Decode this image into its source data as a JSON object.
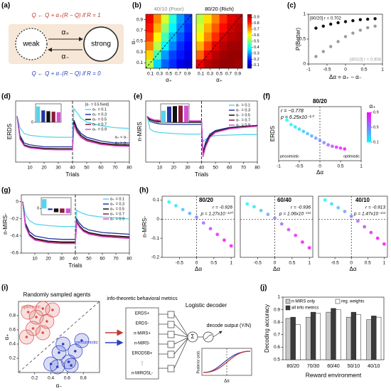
{
  "labels": [
    "(a)",
    "(b)",
    "(c)",
    "(d)",
    "(e)",
    "(f)",
    "(g)",
    "(h)",
    "(i)",
    "(j)"
  ],
  "a": {
    "eq_plus": "Q ← Q + α₊(R − Q)   if R = 1",
    "weak": "weak",
    "strong": "strong",
    "alpha_plus": "α₊",
    "alpha_minus": "α₋",
    "eq_minus": "Q ← Q + α₋(R − Q)   if R = 0"
  },
  "b": {
    "type": "heatmap",
    "xlabel": "α₊",
    "ylabel": "α₋",
    "xlim": [
      0,
      1
    ],
    "ylim": [
      0,
      1
    ],
    "xticks": [
      0.1,
      0.3,
      0.5,
      0.7,
      0.9
    ],
    "yticks": [
      0.1,
      0.3,
      0.5,
      0.7,
      0.9
    ],
    "clim": [
      0.05,
      0.95
    ],
    "cticks": [
      0.1,
      0.2,
      0.3,
      0.4,
      0.5,
      0.6,
      0.7,
      0.8,
      0.9
    ],
    "colormap": "jet",
    "maps": [
      {
        "title": "40/10 (Poor)",
        "color": "#888888",
        "z": [
          [
            0.55,
            0.35,
            0.25,
            0.2,
            0.15,
            0.12
          ],
          [
            0.65,
            0.45,
            0.3,
            0.22,
            0.18,
            0.14
          ],
          [
            0.72,
            0.55,
            0.38,
            0.28,
            0.2,
            0.16
          ],
          [
            0.78,
            0.62,
            0.45,
            0.33,
            0.24,
            0.18
          ],
          [
            0.82,
            0.68,
            0.52,
            0.38,
            0.28,
            0.2
          ],
          [
            0.85,
            0.72,
            0.58,
            0.42,
            0.3,
            0.22
          ]
        ]
      },
      {
        "title": "80/20 (Rich)",
        "color": "#000000",
        "z": [
          [
            0.85,
            0.9,
            0.92,
            0.93,
            0.93,
            0.92
          ],
          [
            0.75,
            0.85,
            0.9,
            0.92,
            0.93,
            0.93
          ],
          [
            0.68,
            0.78,
            0.86,
            0.9,
            0.92,
            0.92
          ],
          [
            0.62,
            0.72,
            0.8,
            0.87,
            0.9,
            0.91
          ],
          [
            0.58,
            0.68,
            0.76,
            0.83,
            0.88,
            0.9
          ],
          [
            0.55,
            0.64,
            0.72,
            0.8,
            0.86,
            0.88
          ]
        ]
      }
    ]
  },
  "c": {
    "type": "scatter",
    "xlabel": "Δα = α₊ − α₋",
    "ylabel": "P(Better)",
    "xlim": [
      -1,
      1
    ],
    "ylim": [
      0,
      1
    ],
    "xticks": [
      -1,
      -0.5,
      0,
      0.5,
      1
    ],
    "yticks": [
      0,
      0.5,
      1
    ],
    "series": [
      {
        "name": "[80/20] r = 0.702",
        "color": "#111111",
        "x": [
          -0.8,
          -0.6,
          -0.4,
          -0.2,
          0,
          0.2,
          0.4,
          0.6,
          0.8
        ],
        "values": [
          0.72,
          0.76,
          0.8,
          0.83,
          0.85,
          0.87,
          0.89,
          0.9,
          0.91
        ]
      },
      {
        "name": "[40/10] r = 0.904",
        "color": "#9a9a9a",
        "x": [
          -0.8,
          -0.6,
          -0.4,
          -0.2,
          0,
          0.2,
          0.4,
          0.6,
          0.8
        ],
        "values": [
          0.15,
          0.25,
          0.35,
          0.45,
          0.55,
          0.62,
          0.68,
          0.73,
          0.76
        ]
      }
    ]
  },
  "d": {
    "type": "line",
    "xlabel": "Trials",
    "ylabel": "ERDS",
    "xlim": [
      0,
      80
    ],
    "ylim": [
      0,
      0.16
    ],
    "xticks": [
      10,
      20,
      30,
      40,
      50,
      60,
      70,
      80
    ],
    "legend_title": "[α₋ = 0.5 fixed]",
    "annotations": [
      "α₊ < α₋",
      "α₊ > α₋"
    ],
    "x": [
      1,
      3,
      6,
      10,
      20,
      30,
      40,
      41,
      43,
      46,
      50,
      60,
      70,
      80
    ],
    "series": [
      {
        "name": "α₊ = 0.1",
        "color": "#56d4ec",
        "values": [
          0.12,
          0.09,
          0.075,
          0.07,
          0.066,
          0.065,
          0.065,
          0.14,
          0.13,
          0.115,
          0.105,
          0.095,
          0.09,
          0.088
        ]
      },
      {
        "name": "α₊ = 0.3",
        "color": "#2436a0",
        "values": [
          0.12,
          0.07,
          0.05,
          0.045,
          0.04,
          0.04,
          0.04,
          0.11,
          0.09,
          0.075,
          0.065,
          0.055,
          0.05,
          0.05
        ]
      },
      {
        "name": "α₊ = 0.5",
        "color": "#111111",
        "values": [
          0.12,
          0.065,
          0.045,
          0.04,
          0.036,
          0.035,
          0.035,
          0.105,
          0.085,
          0.07,
          0.06,
          0.05,
          0.046,
          0.045
        ]
      },
      {
        "name": "α₊ = 0.7",
        "color": "#8a1c3c",
        "values": [
          0.12,
          0.062,
          0.043,
          0.038,
          0.034,
          0.033,
          0.033,
          0.1,
          0.08,
          0.066,
          0.057,
          0.048,
          0.044,
          0.043
        ]
      },
      {
        "name": "α₊ = 0.9",
        "color": "#d84fd8",
        "values": [
          0.12,
          0.06,
          0.042,
          0.037,
          0.033,
          0.032,
          0.032,
          0.098,
          0.078,
          0.064,
          0.055,
          0.046,
          0.042,
          0.041
        ]
      }
    ],
    "inset": {
      "values": [
        0.6,
        0.45,
        0.42,
        0.4,
        0.38
      ],
      "ylim": [
        0,
        0.7
      ],
      "yticks": [
        0
      ]
    }
  },
  "e": {
    "type": "line",
    "xlabel": "Trials",
    "ylabel": "n-MIRS",
    "xlim": [
      0,
      80
    ],
    "ylim": [
      -0.3,
      0.9
    ],
    "xticks": [
      10,
      20,
      30,
      40,
      50,
      60,
      70,
      80
    ],
    "x": [
      1,
      3,
      6,
      10,
      20,
      30,
      40,
      41,
      43,
      46,
      50,
      60,
      70,
      80
    ],
    "series": [
      {
        "name": "α₋ = 0.1",
        "color": "#56d4ec",
        "values": [
          0.6,
          0.35,
          0.3,
          0.28,
          0.26,
          0.25,
          0.25,
          0.1,
          0.15,
          0.2,
          0.22,
          0.23,
          0.24,
          0.24
        ]
      },
      {
        "name": "α₋ = 0.3",
        "color": "#2436a0",
        "values": [
          0.6,
          0.5,
          0.47,
          0.45,
          0.44,
          0.44,
          0.44,
          -0.1,
          0.1,
          0.25,
          0.32,
          0.38,
          0.4,
          0.41
        ]
      },
      {
        "name": "α₋ = 0.5",
        "color": "#111111",
        "values": [
          0.6,
          0.53,
          0.5,
          0.49,
          0.48,
          0.48,
          0.48,
          -0.15,
          0.05,
          0.22,
          0.3,
          0.37,
          0.4,
          0.42
        ]
      },
      {
        "name": "α₋ = 0.7",
        "color": "#8a1c3c",
        "values": [
          0.6,
          0.55,
          0.52,
          0.51,
          0.5,
          0.5,
          0.5,
          -0.18,
          0.02,
          0.2,
          0.29,
          0.36,
          0.39,
          0.41
        ]
      },
      {
        "name": "α₋ = 0.9",
        "color": "#d84fd8",
        "values": [
          0.6,
          0.56,
          0.53,
          0.52,
          0.51,
          0.51,
          0.51,
          -0.2,
          0,
          0.18,
          0.28,
          0.35,
          0.38,
          0.4
        ]
      }
    ],
    "inset": {
      "values": [
        0.5,
        0.68,
        0.7,
        0.72,
        0.72
      ],
      "ylim": [
        0,
        0.8
      ],
      "yticks": [
        0
      ]
    }
  },
  "f": {
    "type": "scatter",
    "title": "80/20",
    "r": "r = −0.778",
    "p": "p = 6.25x10⁻⁶⁰",
    "xlabel": "Δα",
    "ylabel": "ERDS",
    "xlim": [
      -1,
      1
    ],
    "ylim": [
      0.02,
      0.14
    ],
    "xticks": [
      -1,
      -0.5,
      0,
      0.5,
      1
    ],
    "colorbar_label": "α₊",
    "clim": [
      0.1,
      0.9
    ],
    "cticks": [
      0.1,
      0.5,
      0.9
    ],
    "colormap": "cool",
    "pessimistic": "pessimistic",
    "optimistic": "optimistic",
    "x": [
      -0.8,
      -0.7,
      -0.6,
      -0.5,
      -0.4,
      -0.3,
      -0.2,
      -0.1,
      0,
      0.1,
      0.2,
      0.3,
      0.4,
      0.5,
      0.6
    ],
    "values": [
      0.11,
      0.1,
      0.095,
      0.09,
      0.085,
      0.08,
      0.075,
      0.07,
      0.065,
      0.06,
      0.055,
      0.052,
      0.05,
      0.048,
      0.046
    ],
    "c": [
      0.1,
      0.1,
      0.2,
      0.2,
      0.3,
      0.3,
      0.4,
      0.4,
      0.5,
      0.5,
      0.6,
      0.7,
      0.8,
      0.8,
      0.9
    ]
  },
  "g": {
    "type": "line",
    "xlabel": "Trials",
    "ylabel": "n-MIRS-",
    "xlim": [
      0,
      80
    ],
    "ylim": [
      -0.6,
      0.08
    ],
    "xticks": [
      10,
      20,
      30,
      40,
      50,
      60,
      70,
      80
    ],
    "yticks": [
      -0.6,
      -0.4,
      -0.2,
      0
    ],
    "x": [
      1,
      3,
      6,
      10,
      20,
      30,
      40,
      41,
      43,
      46,
      50,
      60,
      70,
      80
    ],
    "series": [
      {
        "name": "α₊ = 0.1",
        "color": "#56d4ec",
        "values": [
          0,
          -0.15,
          -0.22,
          -0.26,
          -0.28,
          -0.29,
          -0.29,
          -0.1,
          -0.12,
          -0.14,
          -0.16,
          -0.18,
          -0.19,
          -0.2
        ]
      },
      {
        "name": "α₊ = 0.3",
        "color": "#2436a0",
        "values": [
          0,
          -0.25,
          -0.35,
          -0.4,
          -0.43,
          -0.44,
          -0.44,
          -0.2,
          -0.25,
          -0.3,
          -0.33,
          -0.36,
          -0.37,
          -0.38
        ]
      },
      {
        "name": "α₊ = 0.5",
        "color": "#111111",
        "values": [
          0,
          -0.27,
          -0.38,
          -0.43,
          -0.46,
          -0.47,
          -0.47,
          -0.23,
          -0.28,
          -0.33,
          -0.36,
          -0.39,
          -0.4,
          -0.41
        ]
      },
      {
        "name": "α₊ = 0.7",
        "color": "#8a1c3c",
        "values": [
          0,
          -0.28,
          -0.39,
          -0.44,
          -0.47,
          -0.48,
          -0.48,
          -0.24,
          -0.29,
          -0.34,
          -0.37,
          -0.4,
          -0.41,
          -0.42
        ]
      },
      {
        "name": "α₊ = 0.9",
        "color": "#d84fd8",
        "values": [
          0,
          -0.29,
          -0.4,
          -0.45,
          -0.48,
          -0.49,
          -0.49,
          -0.25,
          -0.3,
          -0.35,
          -0.38,
          -0.41,
          -0.42,
          -0.43
        ]
      }
    ],
    "inset": {
      "values": [
        0.3,
        -0.05,
        -0.12,
        -0.14,
        -0.15
      ],
      "ylim": [
        -0.2,
        0.35
      ],
      "yticks": [
        0
      ]
    }
  },
  "h": {
    "type": "scatter",
    "xlabel": "Δα",
    "ylabel": "n-MIRS-",
    "xlim": [
      -1,
      1.1
    ],
    "ylim": [
      -0.2,
      0.12
    ],
    "xticks": [
      -0.5,
      0,
      0.5,
      1
    ],
    "yticks": [
      0.1,
      0,
      -0.1,
      -0.2
    ],
    "colormap": "cool",
    "clim": [
      0.1,
      0.9
    ],
    "plots": [
      {
        "title": "80/20",
        "r": "r = -0.926",
        "p": "p = 1.27x10⁻¹²⁰",
        "x": [
          -0.8,
          -0.6,
          -0.4,
          -0.2,
          0,
          0.2,
          0.4,
          0.6,
          0.8,
          1
        ],
        "values": [
          0.09,
          0.07,
          0.05,
          0.03,
          0.01,
          -0.02,
          -0.05,
          -0.08,
          -0.11,
          -0.14
        ],
        "c": [
          0.1,
          0.2,
          0.3,
          0.4,
          0.5,
          0.6,
          0.7,
          0.8,
          0.9,
          0.9
        ]
      },
      {
        "title": "60/40",
        "r": "r = -0.936",
        "p": "p = 1.06x10⁻¹³¹",
        "x": [
          -0.8,
          -0.6,
          -0.4,
          -0.2,
          0,
          0.2,
          0.4,
          0.6,
          0.8,
          1
        ],
        "values": [
          0.08,
          0.065,
          0.045,
          0.025,
          0.005,
          -0.025,
          -0.055,
          -0.085,
          -0.12,
          -0.15
        ],
        "c": [
          0.1,
          0.2,
          0.3,
          0.4,
          0.5,
          0.6,
          0.7,
          0.8,
          0.9,
          0.9
        ]
      },
      {
        "title": "40/10",
        "r": "r = -0.913",
        "p": "p = 1.47x10⁻¹¹³",
        "x": [
          -0.8,
          -0.6,
          -0.4,
          -0.2,
          0,
          0.2,
          0.4,
          0.6,
          0.8,
          1
        ],
        "values": [
          0.1,
          0.08,
          0.06,
          0.04,
          0.015,
          -0.01,
          -0.04,
          -0.07,
          -0.1,
          -0.13
        ],
        "c": [
          0.1,
          0.2,
          0.3,
          0.4,
          0.5,
          0.6,
          0.7,
          0.8,
          0.9,
          0.9
        ]
      }
    ]
  },
  "i": {
    "type": "scatter",
    "title": "Randomly sampled agents",
    "xlabel": "α₋",
    "ylabel": "α₊",
    "xlim": [
      0,
      1
    ],
    "ylim": [
      0,
      1
    ],
    "xticks": [
      0.2,
      0.4,
      0.6,
      0.8
    ],
    "yticks": [
      0.2,
      0.4,
      0.6,
      0.8
    ],
    "series": [
      {
        "name": "optimistic",
        "color": "#d9534f",
        "x": [
          0.1,
          0.18,
          0.3,
          0.22,
          0.35,
          0.42,
          0.12,
          0.3
        ],
        "values": [
          0.5,
          0.62,
          0.56,
          0.78,
          0.72,
          0.88,
          0.85,
          0.9
        ]
      },
      {
        "name": "pessimistic",
        "color": "#2a3fc0",
        "x": [
          0.4,
          0.5,
          0.62,
          0.55,
          0.7,
          0.78,
          0.48,
          0.65
        ],
        "values": [
          0.12,
          0.28,
          0.15,
          0.4,
          0.3,
          0.45,
          0.08,
          0.1
        ]
      }
    ],
    "metrics_title": "info-theoretic behavioral metrics",
    "metrics": [
      "ERDS+",
      "ERDS-",
      "n-MIRS+",
      "n-MIRS-",
      "ERODSB+",
      "⋮",
      "n-MIROSL-"
    ],
    "decoder_title": "Logistic decoder",
    "sum": "Σ",
    "output": "decode output (Y/N)",
    "inset_ylabel": "Posterior prob.",
    "inset_xlabel": "Δα"
  },
  "j": {
    "type": "bar",
    "xlabel": "Reward environment",
    "ylabel": "Decoding accuracy",
    "categories": [
      "80/20",
      "70/30",
      "60/40",
      "50/10",
      "40/10"
    ],
    "ylim": [
      0.5,
      1
    ],
    "yticks": [
      0.5,
      0.6,
      0.7,
      0.8,
      0.9,
      1
    ],
    "series": [
      {
        "name": "n-MIRS only",
        "color": "#c8c8c8",
        "values": [
          0.83,
          0.84,
          0.88,
          0.84,
          0.82
        ]
      },
      {
        "name": "all info metrics",
        "color": "#3a3a3a",
        "values": [
          0.84,
          0.88,
          0.91,
          0.88,
          0.85
        ]
      },
      {
        "name": "reg. weights",
        "color": "#ffffff",
        "values": [
          0.78,
          0.87,
          0.9,
          0.86,
          0.84
        ]
      }
    ]
  }
}
